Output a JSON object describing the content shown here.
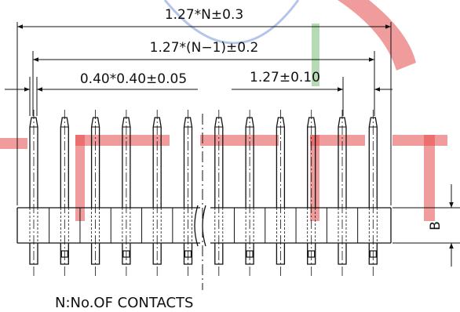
{
  "labels": {
    "total_length": "1.27*N±0.3",
    "span_length": "1.27*(N−1)±0.2",
    "pin_size": "0.40*0.40±0.05",
    "pitch": "1.27±0.10",
    "body_height": "B",
    "note": "N:No.OF  CONTACTS"
  },
  "drawing": {
    "pin_count_drawn": 12,
    "line_color": "#111111",
    "watermark_color": "#e54a4a"
  }
}
